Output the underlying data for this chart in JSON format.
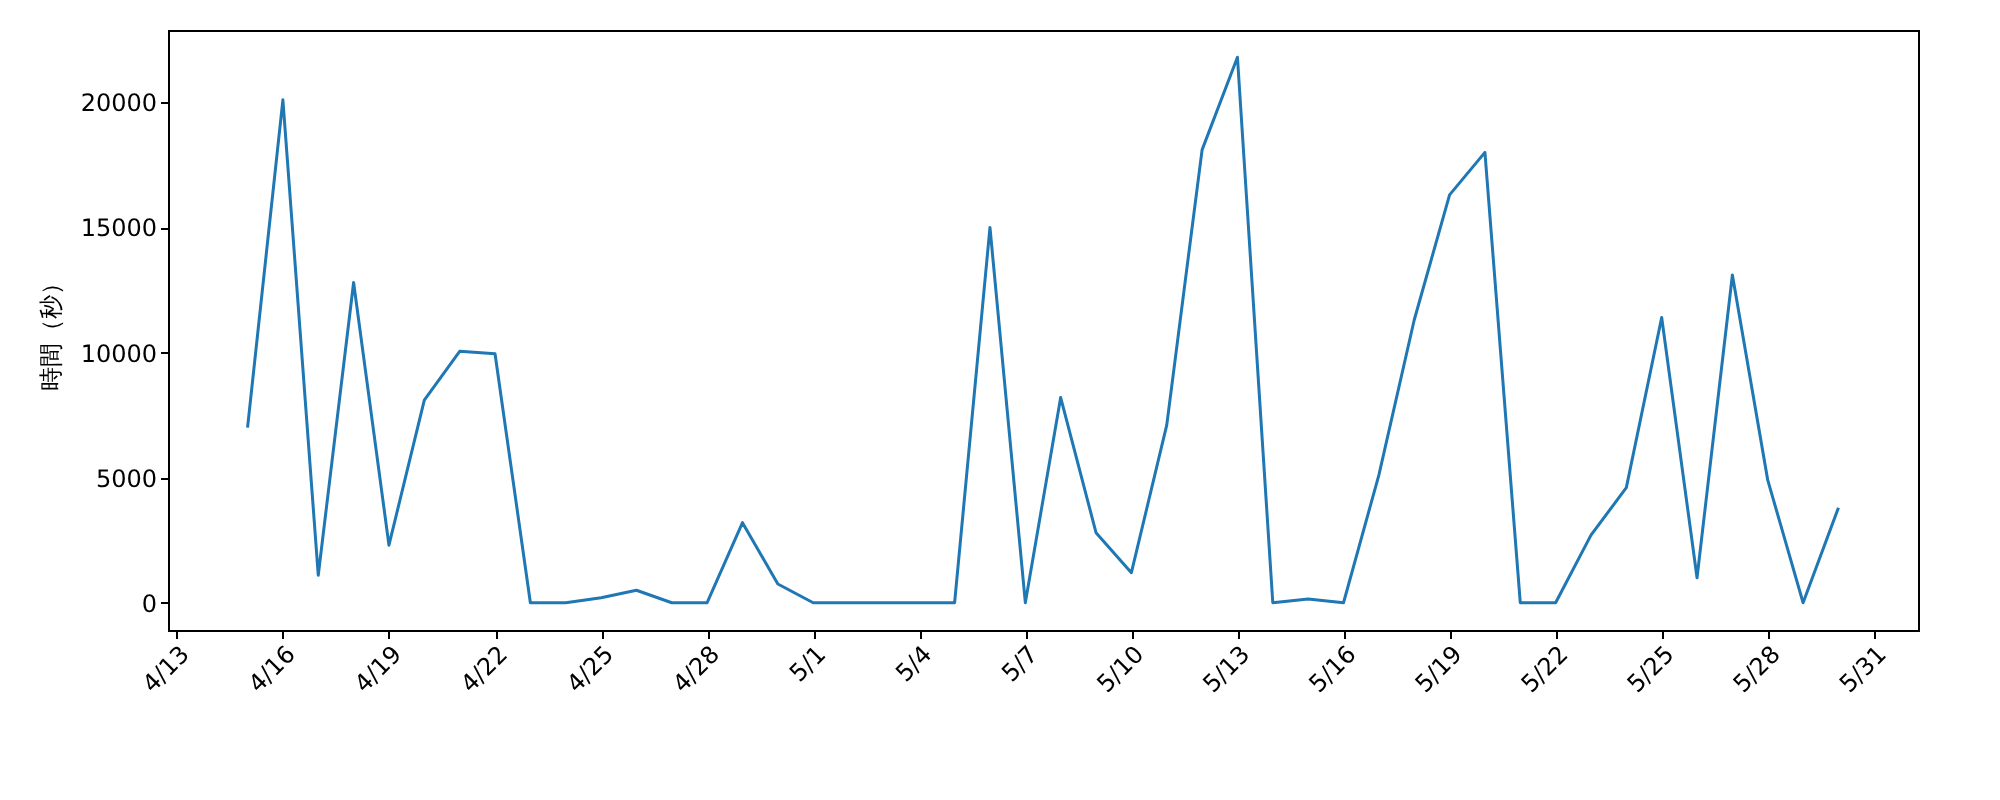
{
  "chart_data": {
    "type": "line",
    "ylabel": "時間（秒）",
    "x": [
      "--04-15",
      "--04-16",
      "--04-17",
      "--04-18",
      "--04-19",
      "--04-20",
      "--04-21",
      "--04-22",
      "--04-23",
      "--04-24",
      "--04-25",
      "--04-26",
      "--04-27",
      "--04-28",
      "--04-29",
      "--04-30",
      "--05-01",
      "--05-02",
      "--05-03",
      "--05-04",
      "--05-05",
      "--05-06",
      "--05-07",
      "--05-08",
      "--05-09",
      "--05-10",
      "--05-11",
      "--05-12",
      "--05-13",
      "--05-14",
      "--05-15",
      "--05-16",
      "--05-17",
      "--05-18",
      "--05-19",
      "--05-20",
      "--05-21",
      "--05-22",
      "--05-23",
      "--05-24",
      "--05-25",
      "--05-26",
      "--05-27",
      "--05-28",
      "--05-29",
      "--05-30"
    ],
    "series": [
      {
        "color": "#1f77b4",
        "values": [
          7000,
          20100,
          1100,
          12800,
          2300,
          8100,
          10050,
          9950,
          0,
          0,
          200,
          500,
          0,
          0,
          3200,
          750,
          0,
          0,
          0,
          0,
          0,
          15000,
          0,
          8200,
          2800,
          1200,
          7100,
          18100,
          21800,
          0,
          150,
          0,
          5100,
          11300,
          16300,
          18000,
          0,
          0,
          2700,
          4600,
          11400,
          1000,
          13100,
          4900,
          0,
          3800
        ]
      }
    ],
    "xlim": [
      "--04-12T18:00",
      "--06-01T06:00"
    ],
    "xticks": [
      {
        "value": "--04-13",
        "label": "4/13"
      },
      {
        "value": "--04-16",
        "label": "4/16"
      },
      {
        "value": "--04-19",
        "label": "4/19"
      },
      {
        "value": "--04-22",
        "label": "4/22"
      },
      {
        "value": "--04-25",
        "label": "4/25"
      },
      {
        "value": "--04-28",
        "label": "4/28"
      },
      {
        "value": "--05-01",
        "label": "5/1"
      },
      {
        "value": "--05-04",
        "label": "5/4"
      },
      {
        "value": "--05-07",
        "label": "5/7"
      },
      {
        "value": "--05-10",
        "label": "5/10"
      },
      {
        "value": "--05-13",
        "label": "5/13"
      },
      {
        "value": "--05-16",
        "label": "5/16"
      },
      {
        "value": "--05-19",
        "label": "5/19"
      },
      {
        "value": "--05-22",
        "label": "5/22"
      },
      {
        "value": "--05-25",
        "label": "5/25"
      },
      {
        "value": "--05-28",
        "label": "5/28"
      },
      {
        "value": "--05-31",
        "label": "5/31"
      }
    ],
    "ylim": [
      -1090,
      22890
    ],
    "yticks": [
      0,
      5000,
      10000,
      15000,
      20000
    ]
  }
}
